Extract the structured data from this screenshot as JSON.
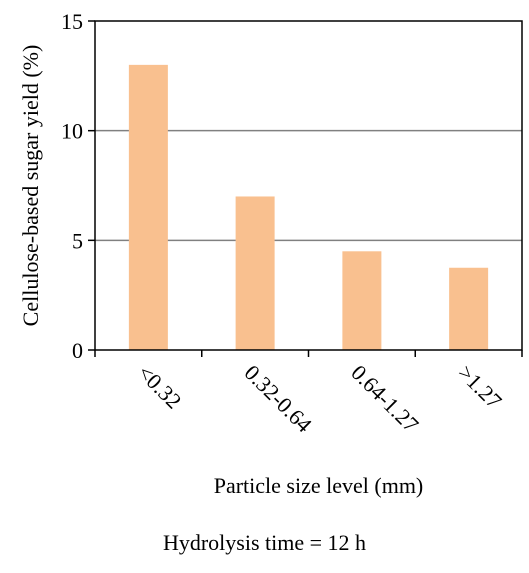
{
  "chart_data": {
    "type": "bar",
    "categories": [
      "<0.32",
      "0.32-0.64",
      "0.64-1.27",
      ">1.27"
    ],
    "values": [
      13.0,
      7.0,
      4.5,
      3.75
    ],
    "xlabel": "Particle size level (mm)",
    "ylabel": "Cellulose-based sugar yield (%)",
    "ylim": [
      0,
      15
    ],
    "yticks": [
      0,
      5,
      10,
      15
    ],
    "grid": "horizontal",
    "bar_color": "#F9C08F",
    "grid_color": "#808080"
  },
  "caption": "Hydrolysis time = 12 h"
}
